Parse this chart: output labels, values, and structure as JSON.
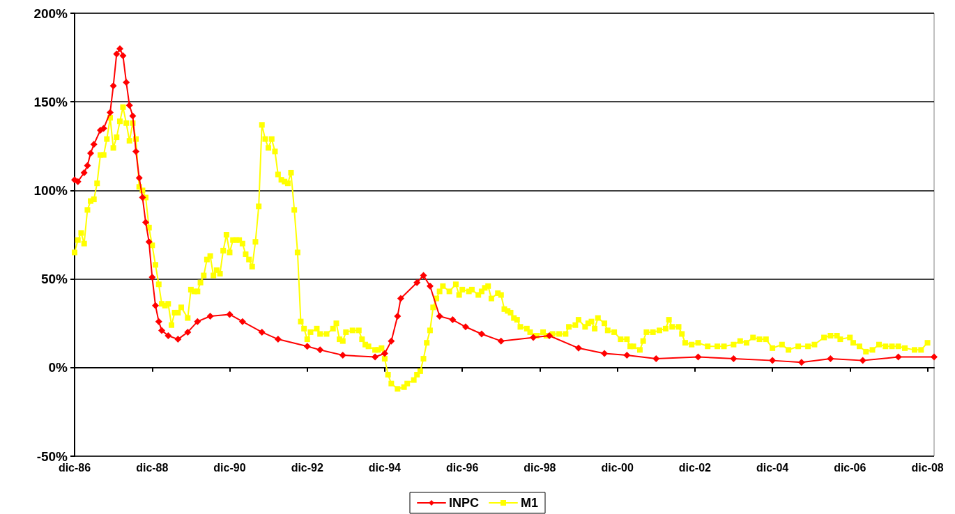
{
  "chart_data": {
    "type": "line",
    "xlim": [
      "1986-12",
      "2009-02"
    ],
    "xticks": [
      {
        "value": "1986-12",
        "label": "dic-86"
      },
      {
        "value": "1988-12",
        "label": "dic-88"
      },
      {
        "value": "1990-12",
        "label": "dic-90"
      },
      {
        "value": "1992-12",
        "label": "dic-92"
      },
      {
        "value": "1994-12",
        "label": "dic-94"
      },
      {
        "value": "1996-12",
        "label": "dic-96"
      },
      {
        "value": "1998-12",
        "label": "dic-98"
      },
      {
        "value": "2000-12",
        "label": "dic-00"
      },
      {
        "value": "2002-12",
        "label": "dic-02"
      },
      {
        "value": "2004-12",
        "label": "dic-04"
      },
      {
        "value": "2006-12",
        "label": "dic-06"
      },
      {
        "value": "2008-12",
        "label": "dic-08"
      }
    ],
    "ylim": [
      -50,
      200
    ],
    "yticks": [
      {
        "value": -50,
        "label": "-50%"
      },
      {
        "value": 0,
        "label": "0%"
      },
      {
        "value": 50,
        "label": "50%"
      },
      {
        "value": 100,
        "label": "100%"
      },
      {
        "value": 150,
        "label": "150%"
      },
      {
        "value": 200,
        "label": "200%"
      }
    ],
    "grid": "y",
    "legend": "bottom",
    "line_style": "solid",
    "series": [
      {
        "name": "INPC",
        "color": "#ff0000",
        "marker": "diamond",
        "x": [
          "1986-12",
          "1987-01",
          "1987-03",
          "1987-04",
          "1987-05",
          "1987-06",
          "1987-08",
          "1987-09",
          "1987-11",
          "1987-12",
          "1988-01",
          "1988-02",
          "1988-03",
          "1988-04",
          "1988-05",
          "1988-06",
          "1988-07",
          "1988-08",
          "1988-09",
          "1988-10",
          "1988-11",
          "1988-12",
          "1989-01",
          "1989-02",
          "1989-03",
          "1989-05",
          "1989-08",
          "1989-11",
          "1990-02",
          "1990-06",
          "1990-12",
          "1991-04",
          "1991-10",
          "1992-03",
          "1992-12",
          "1993-04",
          "1993-11",
          "1994-09",
          "1994-12",
          "1995-02",
          "1995-04",
          "1995-05",
          "1995-10",
          "1995-12",
          "1996-02",
          "1996-05",
          "1996-09",
          "1997-01",
          "1997-06",
          "1997-12",
          "1998-10",
          "1999-03",
          "1999-12",
          "2000-08",
          "2001-03",
          "2001-12",
          "2003-01",
          "2003-12",
          "2004-12",
          "2005-09",
          "2006-06",
          "2007-04",
          "2008-03",
          "2009-02"
        ],
        "values": [
          106,
          105,
          110,
          114,
          121,
          126,
          134,
          135,
          144,
          159,
          177,
          180,
          176,
          161,
          148,
          142,
          122,
          107,
          96,
          82,
          71,
          51,
          35,
          26,
          21,
          18,
          16,
          20,
          26,
          29,
          30,
          26,
          20,
          16,
          12,
          10,
          7,
          6,
          8,
          15,
          29,
          39,
          48,
          52,
          46,
          29,
          27,
          23,
          19,
          15,
          17,
          18,
          11,
          8,
          7,
          5,
          6,
          5,
          4,
          3,
          5,
          4,
          6,
          6
        ]
      },
      {
        "name": "M1",
        "color": "#ffff00",
        "marker": "square",
        "x": [
          "1986-12",
          "1987-01",
          "1987-02",
          "1987-03",
          "1987-04",
          "1987-05",
          "1987-06",
          "1987-07",
          "1987-08",
          "1987-09",
          "1987-10",
          "1987-11",
          "1987-12",
          "1988-01",
          "1988-02",
          "1988-03",
          "1988-04",
          "1988-05",
          "1988-06",
          "1988-07",
          "1988-08",
          "1988-09",
          "1988-10",
          "1988-11",
          "1988-12",
          "1989-01",
          "1989-02",
          "1989-03",
          "1989-04",
          "1989-05",
          "1989-06",
          "1989-07",
          "1989-08",
          "1989-09",
          "1989-11",
          "1989-12",
          "1990-01",
          "1990-02",
          "1990-03",
          "1990-04",
          "1990-05",
          "1990-06",
          "1990-07",
          "1990-08",
          "1990-09",
          "1990-10",
          "1990-11",
          "1990-12",
          "1991-01",
          "1991-02",
          "1991-03",
          "1991-04",
          "1991-05",
          "1991-06",
          "1991-07",
          "1991-08",
          "1991-09",
          "1991-10",
          "1991-11",
          "1991-12",
          "1992-01",
          "1992-02",
          "1992-03",
          "1992-04",
          "1992-05",
          "1992-06",
          "1992-07",
          "1992-08",
          "1992-09",
          "1992-10",
          "1992-11",
          "1992-12",
          "1993-01",
          "1993-03",
          "1993-04",
          "1993-06",
          "1993-08",
          "1993-09",
          "1993-10",
          "1993-11",
          "1993-12",
          "1994-02",
          "1994-04",
          "1994-05",
          "1994-06",
          "1994-07",
          "1994-09",
          "1994-10",
          "1994-11",
          "1994-12",
          "1995-01",
          "1995-02",
          "1995-04",
          "1995-06",
          "1995-07",
          "1995-09",
          "1995-10",
          "1995-11",
          "1995-12",
          "1996-01",
          "1996-02",
          "1996-03",
          "1996-04",
          "1996-05",
          "1996-06",
          "1996-08",
          "1996-10",
          "1996-11",
          "1996-12",
          "1997-02",
          "1997-03",
          "1997-05",
          "1997-06",
          "1997-07",
          "1997-08",
          "1997-09",
          "1997-11",
          "1997-12",
          "1998-01",
          "1998-02",
          "1998-03",
          "1998-04",
          "1998-05",
          "1998-06",
          "1998-08",
          "1998-09",
          "1998-11",
          "1999-01",
          "1999-02",
          "1999-04",
          "1999-06",
          "1999-08",
          "1999-09",
          "1999-11",
          "1999-12",
          "2000-02",
          "2000-03",
          "2000-04",
          "2000-05",
          "2000-06",
          "2000-08",
          "2000-09",
          "2000-11",
          "2001-01",
          "2001-03",
          "2001-04",
          "2001-05",
          "2001-07",
          "2001-08",
          "2001-09",
          "2001-11",
          "2002-01",
          "2002-03",
          "2002-04",
          "2002-05",
          "2002-07",
          "2002-08",
          "2002-09",
          "2002-11",
          "2003-01",
          "2003-04",
          "2003-07",
          "2003-09",
          "2003-12",
          "2004-02",
          "2004-04",
          "2004-06",
          "2004-08",
          "2004-10",
          "2004-12",
          "2005-03",
          "2005-05",
          "2005-08",
          "2005-11",
          "2006-01",
          "2006-04",
          "2006-06",
          "2006-08",
          "2006-09",
          "2006-12",
          "2007-01",
          "2007-03",
          "2007-05",
          "2007-07",
          "2007-09",
          "2007-11",
          "2008-01",
          "2008-03",
          "2008-05",
          "2008-08",
          "2008-10",
          "2008-12"
        ],
        "values": [
          65,
          72,
          76,
          70,
          89,
          94,
          95,
          104,
          120,
          120,
          129,
          141,
          124,
          130,
          139,
          147,
          138,
          128,
          138,
          129,
          102,
          100,
          96,
          79,
          69,
          58,
          47,
          36,
          35,
          36,
          24,
          31,
          31,
          34,
          28,
          44,
          43,
          43,
          48,
          52,
          61,
          63,
          52,
          55,
          53,
          66,
          75,
          65,
          72,
          72,
          72,
          70,
          64,
          61,
          57,
          71,
          91,
          137,
          129,
          124,
          129,
          122,
          109,
          106,
          105,
          104,
          110,
          89,
          65,
          26,
          22,
          16,
          20,
          22,
          19,
          19,
          22,
          25,
          16,
          15,
          20,
          21,
          21,
          16,
          13,
          12,
          10,
          10,
          11,
          5,
          -4,
          -9,
          -12,
          -11,
          -9,
          -7,
          -4,
          -2,
          5,
          14,
          21,
          34,
          39,
          43,
          46,
          43,
          47,
          41,
          44,
          43,
          44,
          41,
          43,
          45,
          46,
          39,
          42,
          41,
          33,
          32,
          31,
          28,
          27,
          23,
          22,
          20,
          18,
          20,
          18,
          19,
          19,
          19,
          23,
          24,
          27,
          23,
          25,
          26,
          22,
          28,
          25,
          21,
          20,
          16,
          16,
          12,
          12,
          10,
          15,
          20,
          20,
          21,
          22,
          27,
          23,
          23,
          19,
          14,
          13,
          14,
          12,
          12,
          12,
          13,
          15,
          14,
          17,
          16,
          16,
          11,
          13,
          10,
          12,
          12,
          13,
          17,
          18,
          18,
          16,
          17,
          14,
          12,
          9,
          10,
          13,
          12,
          12,
          12,
          11,
          10,
          10,
          14
        ]
      }
    ]
  }
}
